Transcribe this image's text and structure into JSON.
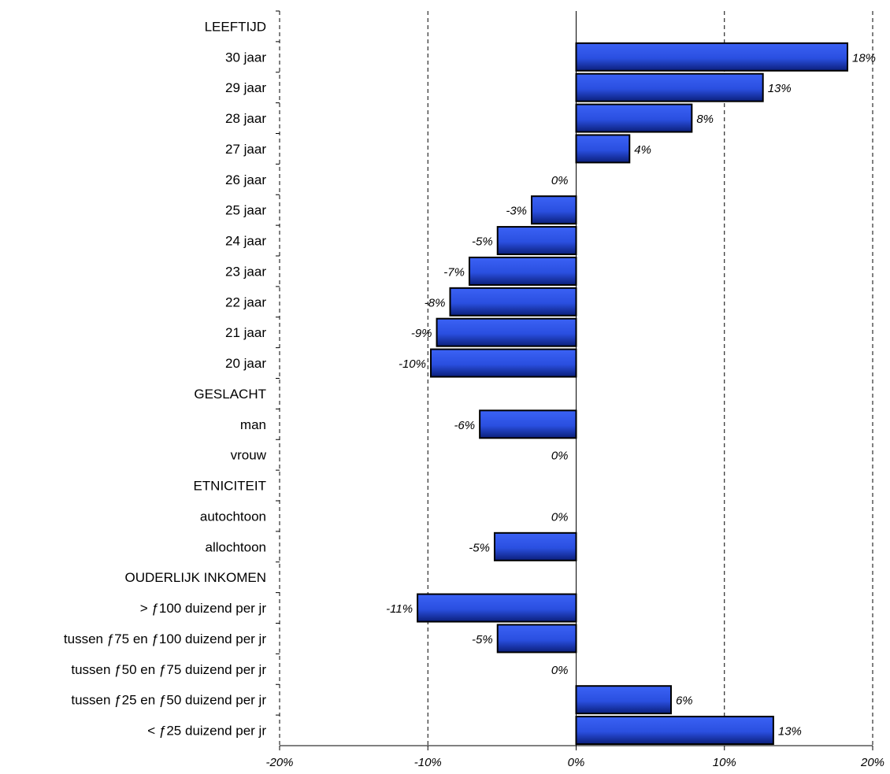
{
  "chart_data": {
    "type": "bar",
    "orientation": "horizontal",
    "categories": [
      "LEEFTIJD",
      "30 jaar",
      "29 jaar",
      "28 jaar",
      "27 jaar",
      "26 jaar",
      "25 jaar",
      "24 jaar",
      "23 jaar",
      "22 jaar",
      "21 jaar",
      "20 jaar",
      "GESLACHT",
      "man",
      "vrouw",
      "ETNICITEIT",
      "autochtoon",
      "allochtoon",
      "OUDERLIJK INKOMEN",
      "> ƒ100 duizend  per jr",
      "tussen ƒ75 en ƒ100 duizend per jr",
      "tussen ƒ50 en ƒ75 duizend per jr",
      "tussen ƒ25 en ƒ50 duizend per jr",
      "< ƒ25 duizend per jr"
    ],
    "values": [
      null,
      18.3,
      12.6,
      7.8,
      3.6,
      0,
      -3.0,
      -5.3,
      -7.2,
      -8.5,
      -9.4,
      -9.8,
      null,
      -6.5,
      0,
      null,
      0,
      -5.5,
      null,
      -10.7,
      -5.3,
      0,
      6.4,
      13.3
    ],
    "data_labels": [
      "",
      "18%",
      "13%",
      "8%",
      "4%",
      "0%",
      "-3%",
      "-5%",
      "-7%",
      "-8%",
      "-9%",
      "-10%",
      "",
      "-6%",
      "0%",
      "",
      "0%",
      "-5%",
      "",
      "-11%",
      "-5%",
      "0%",
      "6%",
      "13%"
    ],
    "xlim": [
      -20,
      20
    ],
    "xticks": [
      -20,
      -10,
      0,
      10,
      20
    ],
    "xtick_labels": [
      "-20%",
      "-10%",
      "0%",
      "10%",
      "20%"
    ],
    "grid": "vertical dashed",
    "colors": {
      "bar": "#2a4fe0",
      "bar_dark": "#0b1f7a",
      "bar_outline": "#000000"
    }
  }
}
